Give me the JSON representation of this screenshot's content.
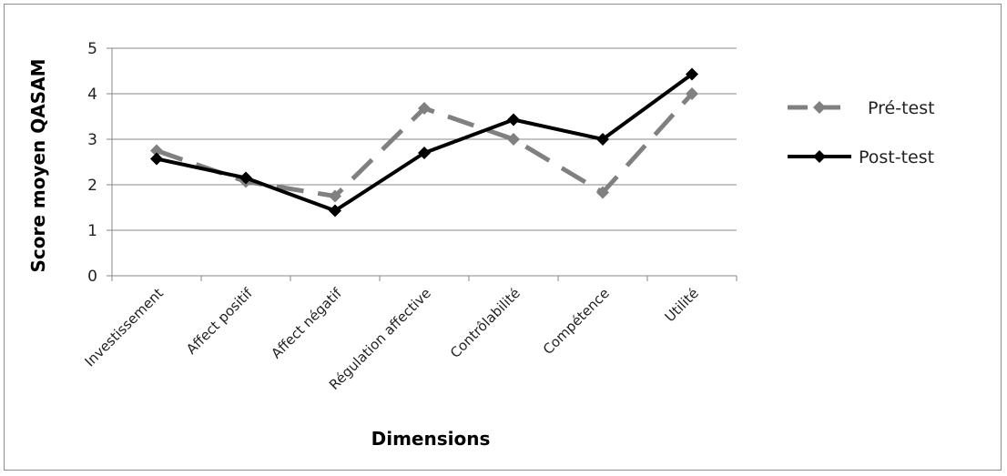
{
  "chart_data": {
    "type": "line",
    "title": "",
    "xlabel": "Dimensions",
    "ylabel": "Score moyen QASAM",
    "ylim": [
      0,
      5
    ],
    "yticks": [
      0,
      1,
      2,
      3,
      4,
      5
    ],
    "grid": true,
    "legend": "right",
    "categories": [
      "Investissement",
      "Affect positif",
      "Affect négatif",
      "Régulation affective",
      "Contrôlabilité",
      "Compétence",
      "Utilité"
    ],
    "series": [
      {
        "name": "Pré-test",
        "values": [
          2.75,
          2.07,
          1.75,
          3.68,
          3.0,
          1.83,
          4.0
        ],
        "color": "#808080",
        "dash": "dashed",
        "marker": "diamond"
      },
      {
        "name": "Post-test",
        "values": [
          2.57,
          2.15,
          1.43,
          2.7,
          3.43,
          3.0,
          4.43
        ],
        "color": "#000000",
        "dash": "solid",
        "marker": "diamond"
      }
    ]
  }
}
